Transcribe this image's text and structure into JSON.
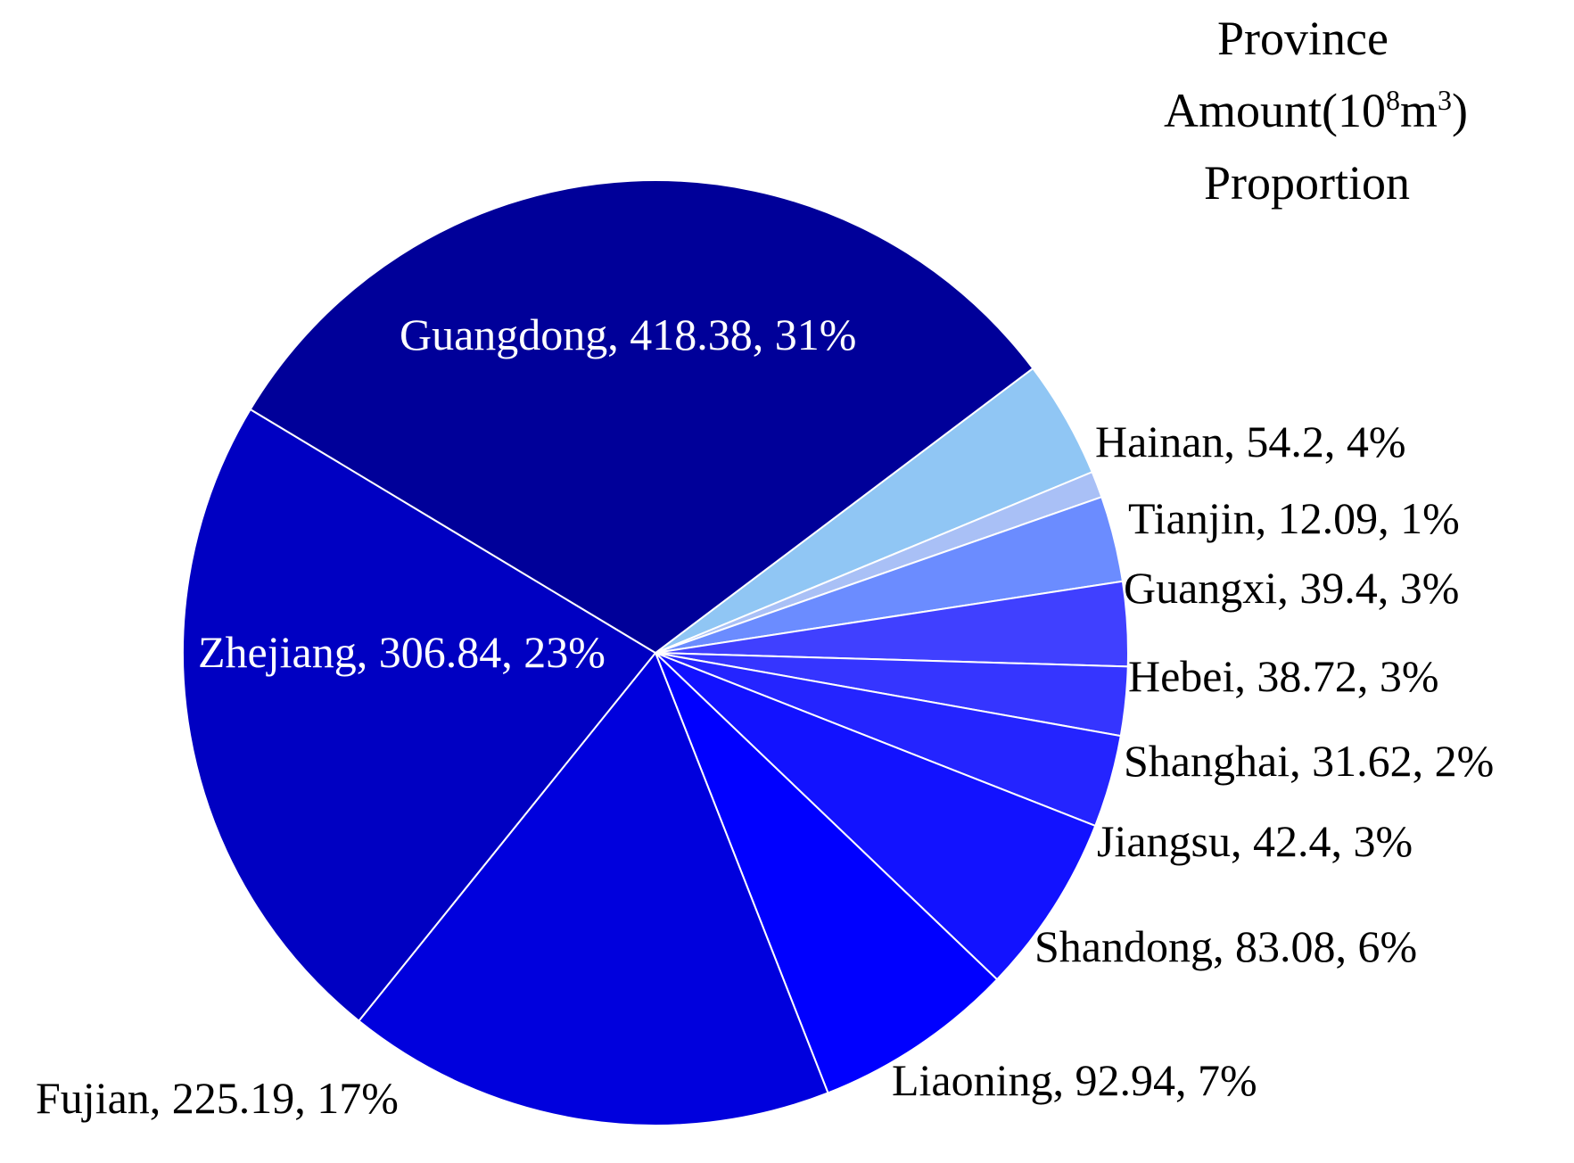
{
  "legend_header": {
    "line1": "Province",
    "line2_prefix": "Amount(10",
    "line2_exp1": "8",
    "line2_mid": "m",
    "line2_exp2": "3",
    "line2_suffix": ")",
    "line3": "Proportion"
  },
  "chart_data": {
    "type": "pie",
    "start_angle_deg": -37,
    "direction": "clockwise",
    "slice_border_color": "#ffffff",
    "slices": [
      {
        "label": "Hainan",
        "value": 54.2,
        "percent": "4%",
        "text": "Hainan, 54.2, 4%",
        "color": "#90c6f4",
        "label_position": "outside"
      },
      {
        "label": "Tianjin",
        "value": 12.09,
        "percent": "1%",
        "text": "Tianjin, 12.09, 1%",
        "color": "#a9c0f6",
        "label_position": "outside"
      },
      {
        "label": "Guangxi",
        "value": 39.4,
        "percent": "3%",
        "text": "Guangxi, 39.4, 3%",
        "color": "#6b8cff",
        "label_position": "outside"
      },
      {
        "label": "Hebei",
        "value": 38.72,
        "percent": "3%",
        "text": "Hebei, 38.72, 3%",
        "color": "#4040ff",
        "label_position": "outside"
      },
      {
        "label": "Shanghai",
        "value": 31.62,
        "percent": "2%",
        "text": "Shanghai, 31.62, 2%",
        "color": "#3535ff",
        "label_position": "outside"
      },
      {
        "label": "Jiangsu",
        "value": 42.4,
        "percent": "3%",
        "text": "Jiangsu, 42.4, 3%",
        "color": "#2424ff",
        "label_position": "outside"
      },
      {
        "label": "Shandong",
        "value": 83.08,
        "percent": "6%",
        "text": "Shandong, 83.08, 6%",
        "color": "#1212ff",
        "label_position": "outside"
      },
      {
        "label": "Liaoning",
        "value": 92.94,
        "percent": "7%",
        "text": "Liaoning, 92.94, 7%",
        "color": "#0000ff",
        "label_position": "outside"
      },
      {
        "label": "Fujian",
        "value": 225.19,
        "percent": "17%",
        "text": "Fujian, 225.19, 17%",
        "color": "#0000dd",
        "label_position": "outside"
      },
      {
        "label": "Zhejiang",
        "value": 306.84,
        "percent": "23%",
        "text": "Zhejiang, 306.84, 23%",
        "color": "#0000c2",
        "label_position": "inside"
      },
      {
        "label": "Guangdong",
        "value": 418.38,
        "percent": "31%",
        "text": "Guangdong, 418.38, 31%",
        "color": "#000099",
        "label_position": "inside"
      }
    ]
  }
}
